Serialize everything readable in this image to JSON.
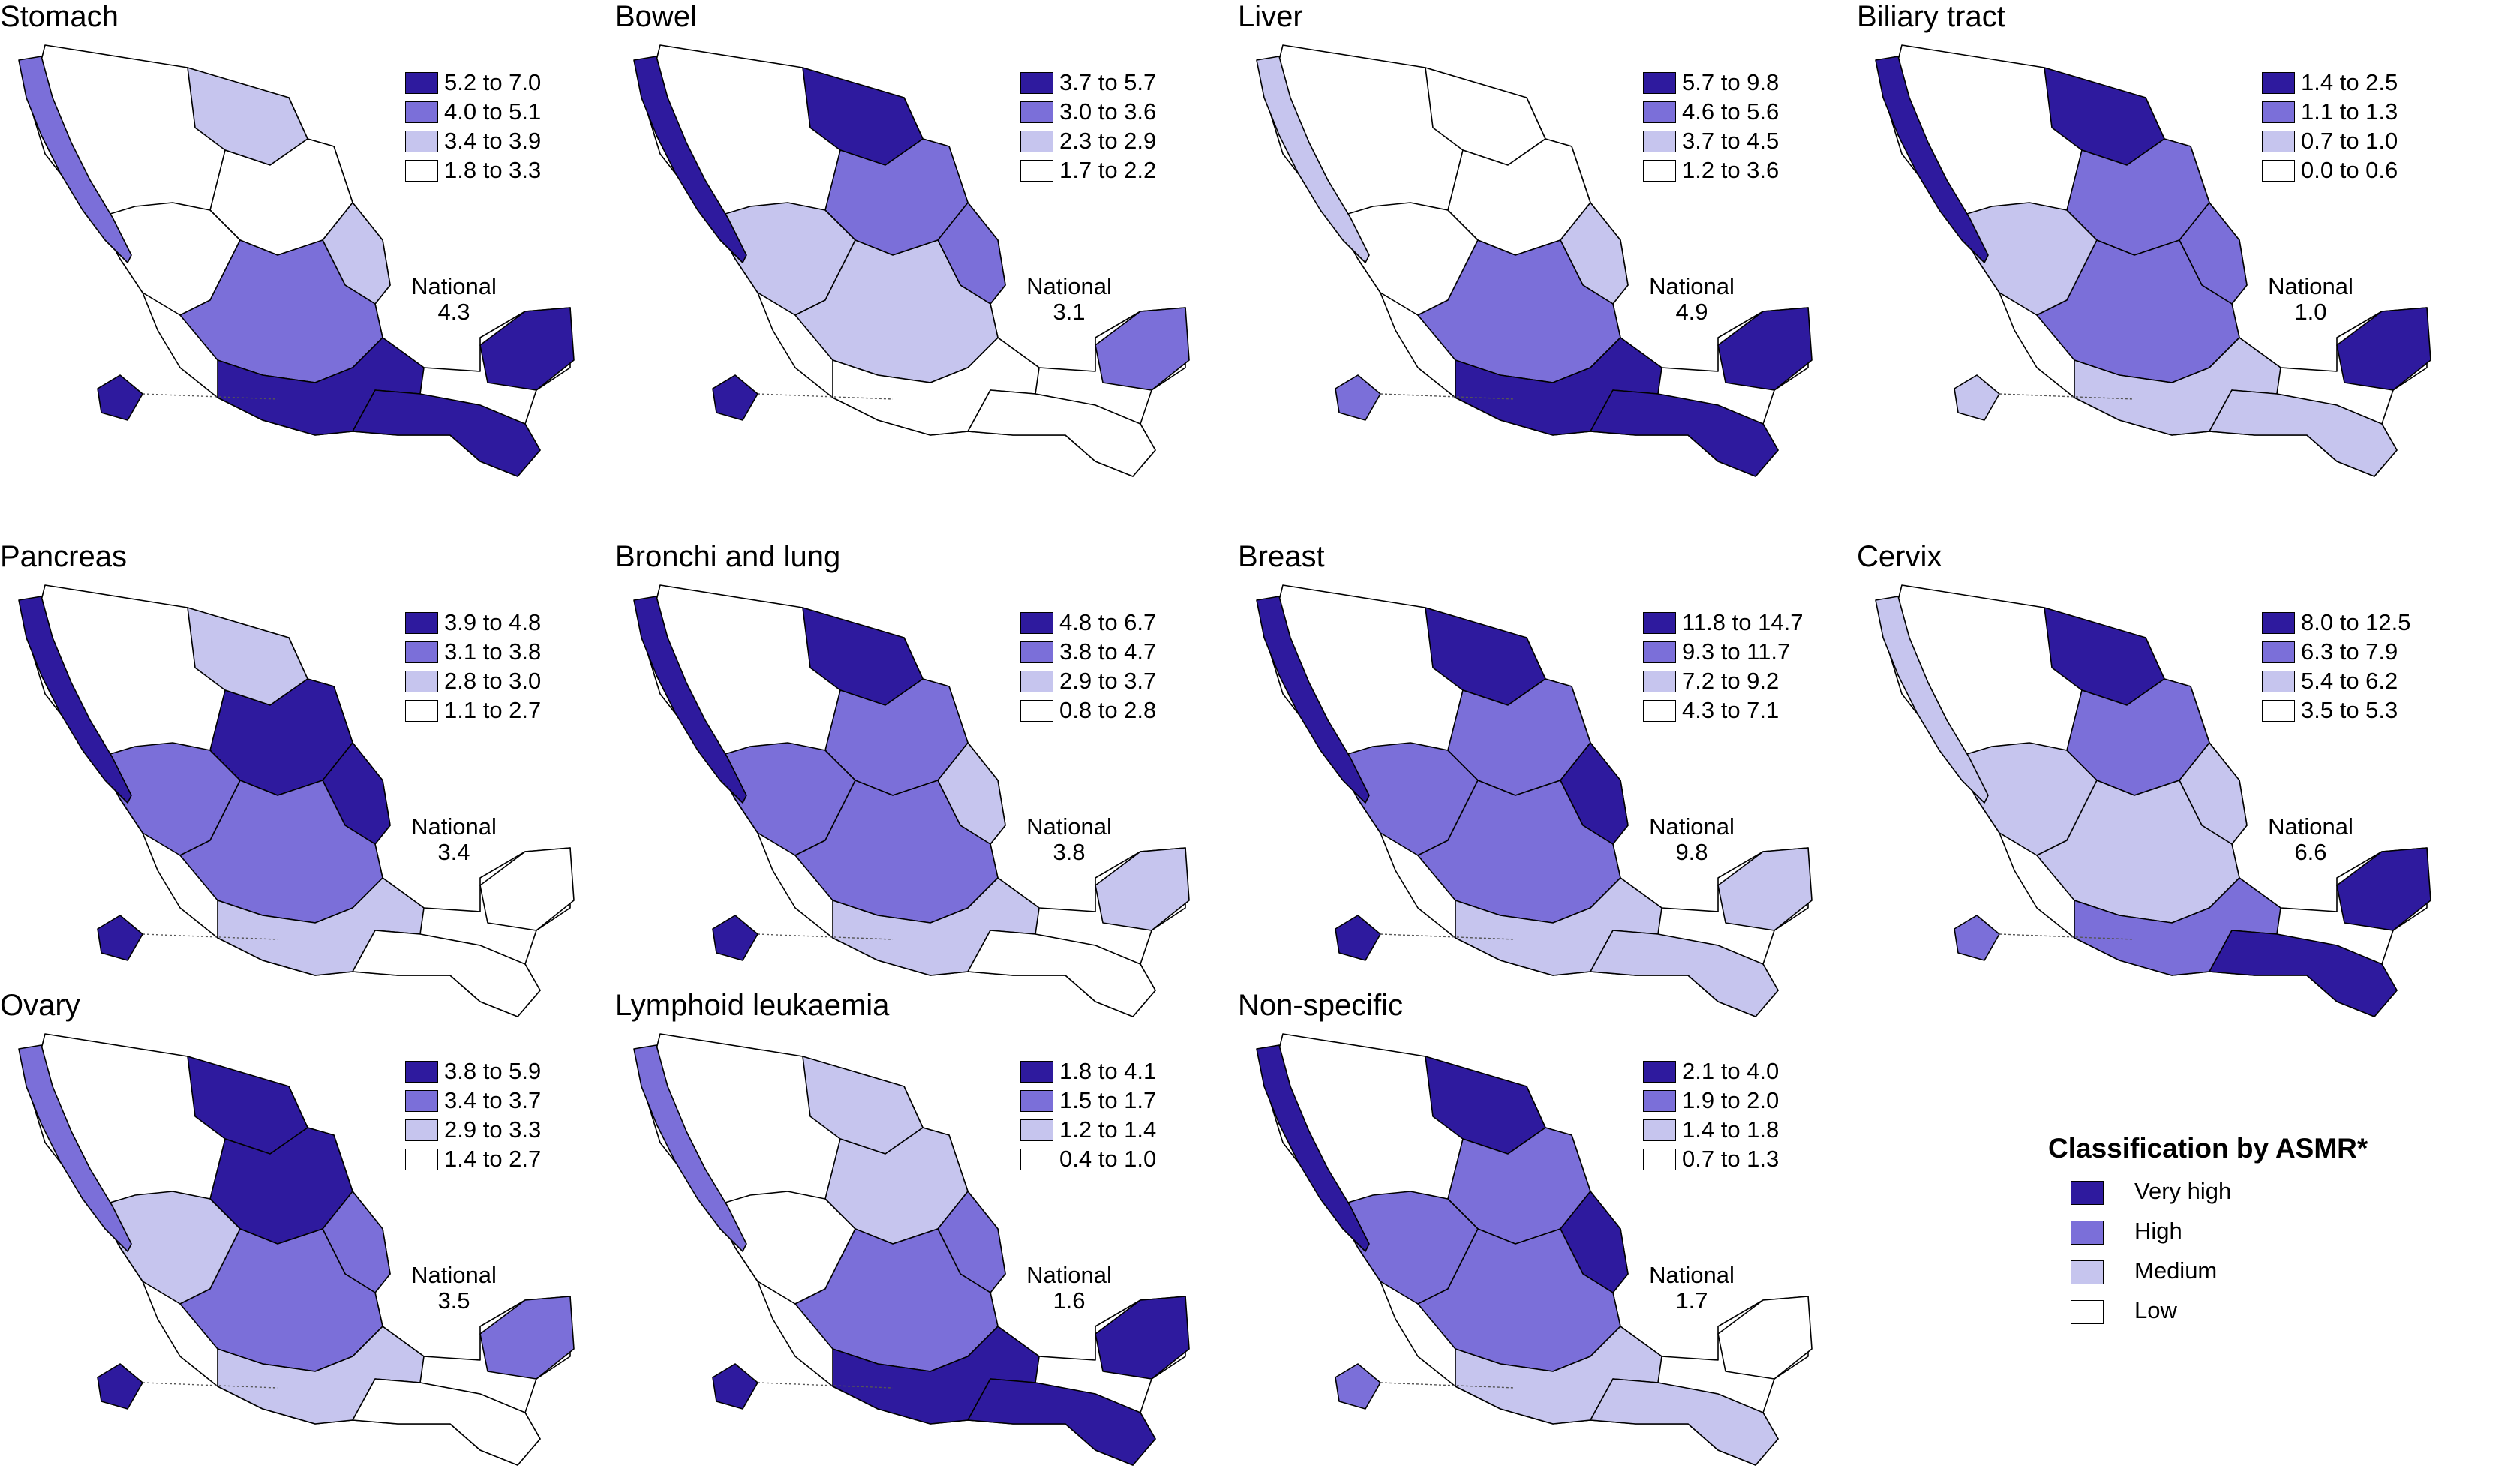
{
  "colors": {
    "very_high": "#2e1a9e",
    "high": "#7b6fd9",
    "medium": "#c6c5ee",
    "low": "#ffffff"
  },
  "panels": [
    {
      "title": "Stomach",
      "ranges": [
        "5.2 to 7.0",
        "4.0 to 5.1",
        "3.4 to 3.9",
        "1.8 to 3.3"
      ],
      "national_label": "National",
      "national_value": "4.3"
    },
    {
      "title": "Bowel",
      "ranges": [
        "3.7 to 5.7",
        "3.0 to 3.6",
        "2.3 to 2.9",
        "1.7 to 2.2"
      ],
      "national_label": "National",
      "national_value": "3.1"
    },
    {
      "title": "Liver",
      "ranges": [
        "5.7 to 9.8",
        "4.6 to 5.6",
        "3.7 to 4.5",
        "1.2 to 3.6"
      ],
      "national_label": "National",
      "national_value": "4.9"
    },
    {
      "title": "Biliary tract",
      "ranges": [
        "1.4 to 2.5",
        "1.1 to 1.3",
        "0.7 to 1.0",
        "0.0 to 0.6"
      ],
      "national_label": "National",
      "national_value": "1.0"
    },
    {
      "title": "Pancreas",
      "ranges": [
        "3.9 to 4.8",
        "3.1 to 3.8",
        "2.8 to 3.0",
        "1.1 to 2.7"
      ],
      "national_label": "National",
      "national_value": "3.4"
    },
    {
      "title": "Bronchi and lung",
      "ranges": [
        "4.8 to 6.7",
        "3.8 to 4.7",
        "2.9 to 3.7",
        "0.8 to 2.8"
      ],
      "national_label": "National",
      "national_value": "3.8"
    },
    {
      "title": "Breast",
      "ranges": [
        "11.8 to 14.7",
        "9.3 to 11.7",
        "7.2 to 9.2",
        "4.3 to 7.1"
      ],
      "national_label": "National",
      "national_value": "9.8"
    },
    {
      "title": "Cervix",
      "ranges": [
        "8.0 to 12.5",
        "6.3 to 7.9",
        "5.4 to 6.2",
        "3.5 to 5.3"
      ],
      "national_label": "National",
      "national_value": "6.6"
    },
    {
      "title": "Ovary",
      "ranges": [
        "3.8 to 5.9",
        "3.4 to 3.7",
        "2.9 to 3.3",
        "1.4 to 2.7"
      ],
      "national_label": "National",
      "national_value": "3.5"
    },
    {
      "title": "Lymphoid leukaemia",
      "ranges": [
        "1.8 to 4.1",
        "1.5 to 1.7",
        "1.2 to 1.4",
        "0.4 to 1.0"
      ],
      "national_label": "National",
      "national_value": "1.6"
    },
    {
      "title": "Non-specific",
      "ranges": [
        "2.1 to  4.0",
        "1.9 to  2.0",
        "1.4 to  1.8",
        "0.7 to  1.3"
      ],
      "national_label": "National",
      "national_value": "1.7"
    }
  ],
  "classification": {
    "title": "Classification by ASMR*",
    "items": [
      "Very high",
      "High",
      "Medium",
      "Low"
    ]
  }
}
